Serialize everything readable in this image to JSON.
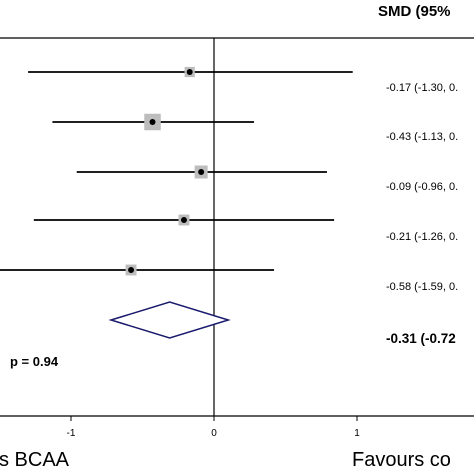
{
  "chart_data": {
    "type": "forest",
    "header": "SMD (95%",
    "studies": [
      {
        "smd": -0.17,
        "lo": -1.3,
        "hi": 0.97,
        "label": "-0.17 (-1.30, 0.",
        "weight": 0.6
      },
      {
        "smd": -0.43,
        "lo": -1.13,
        "hi": 0.28,
        "label": "-0.43 (-1.13, 0.",
        "weight": 1.5
      },
      {
        "smd": -0.09,
        "lo": -0.96,
        "hi": 0.79,
        "label": "-0.09 (-0.96, 0.",
        "weight": 1.0
      },
      {
        "smd": -0.21,
        "lo": -1.26,
        "hi": 0.84,
        "label": "-0.21 (-1.26, 0.",
        "weight": 0.7
      },
      {
        "smd": -0.58,
        "lo": -1.59,
        "hi": 0.42,
        "label": "-0.58 (-1.59, 0.",
        "weight": 0.7
      }
    ],
    "overall": {
      "smd": -0.31,
      "lo": -0.72,
      "hi": 0.1,
      "label": "-0.31 (-0.72"
    },
    "heterogeneity": "p = 0.94",
    "x_ticks": [
      {
        "value": -1,
        "label": "-1"
      },
      {
        "value": 0,
        "label": "0"
      },
      {
        "value": 1,
        "label": "1"
      }
    ],
    "favours_left": "s BCAA",
    "favours_right": "Favours co",
    "colors": {
      "diamond": "#1a1a6e",
      "box": "#bdbdbd",
      "line": "#000000"
    }
  }
}
